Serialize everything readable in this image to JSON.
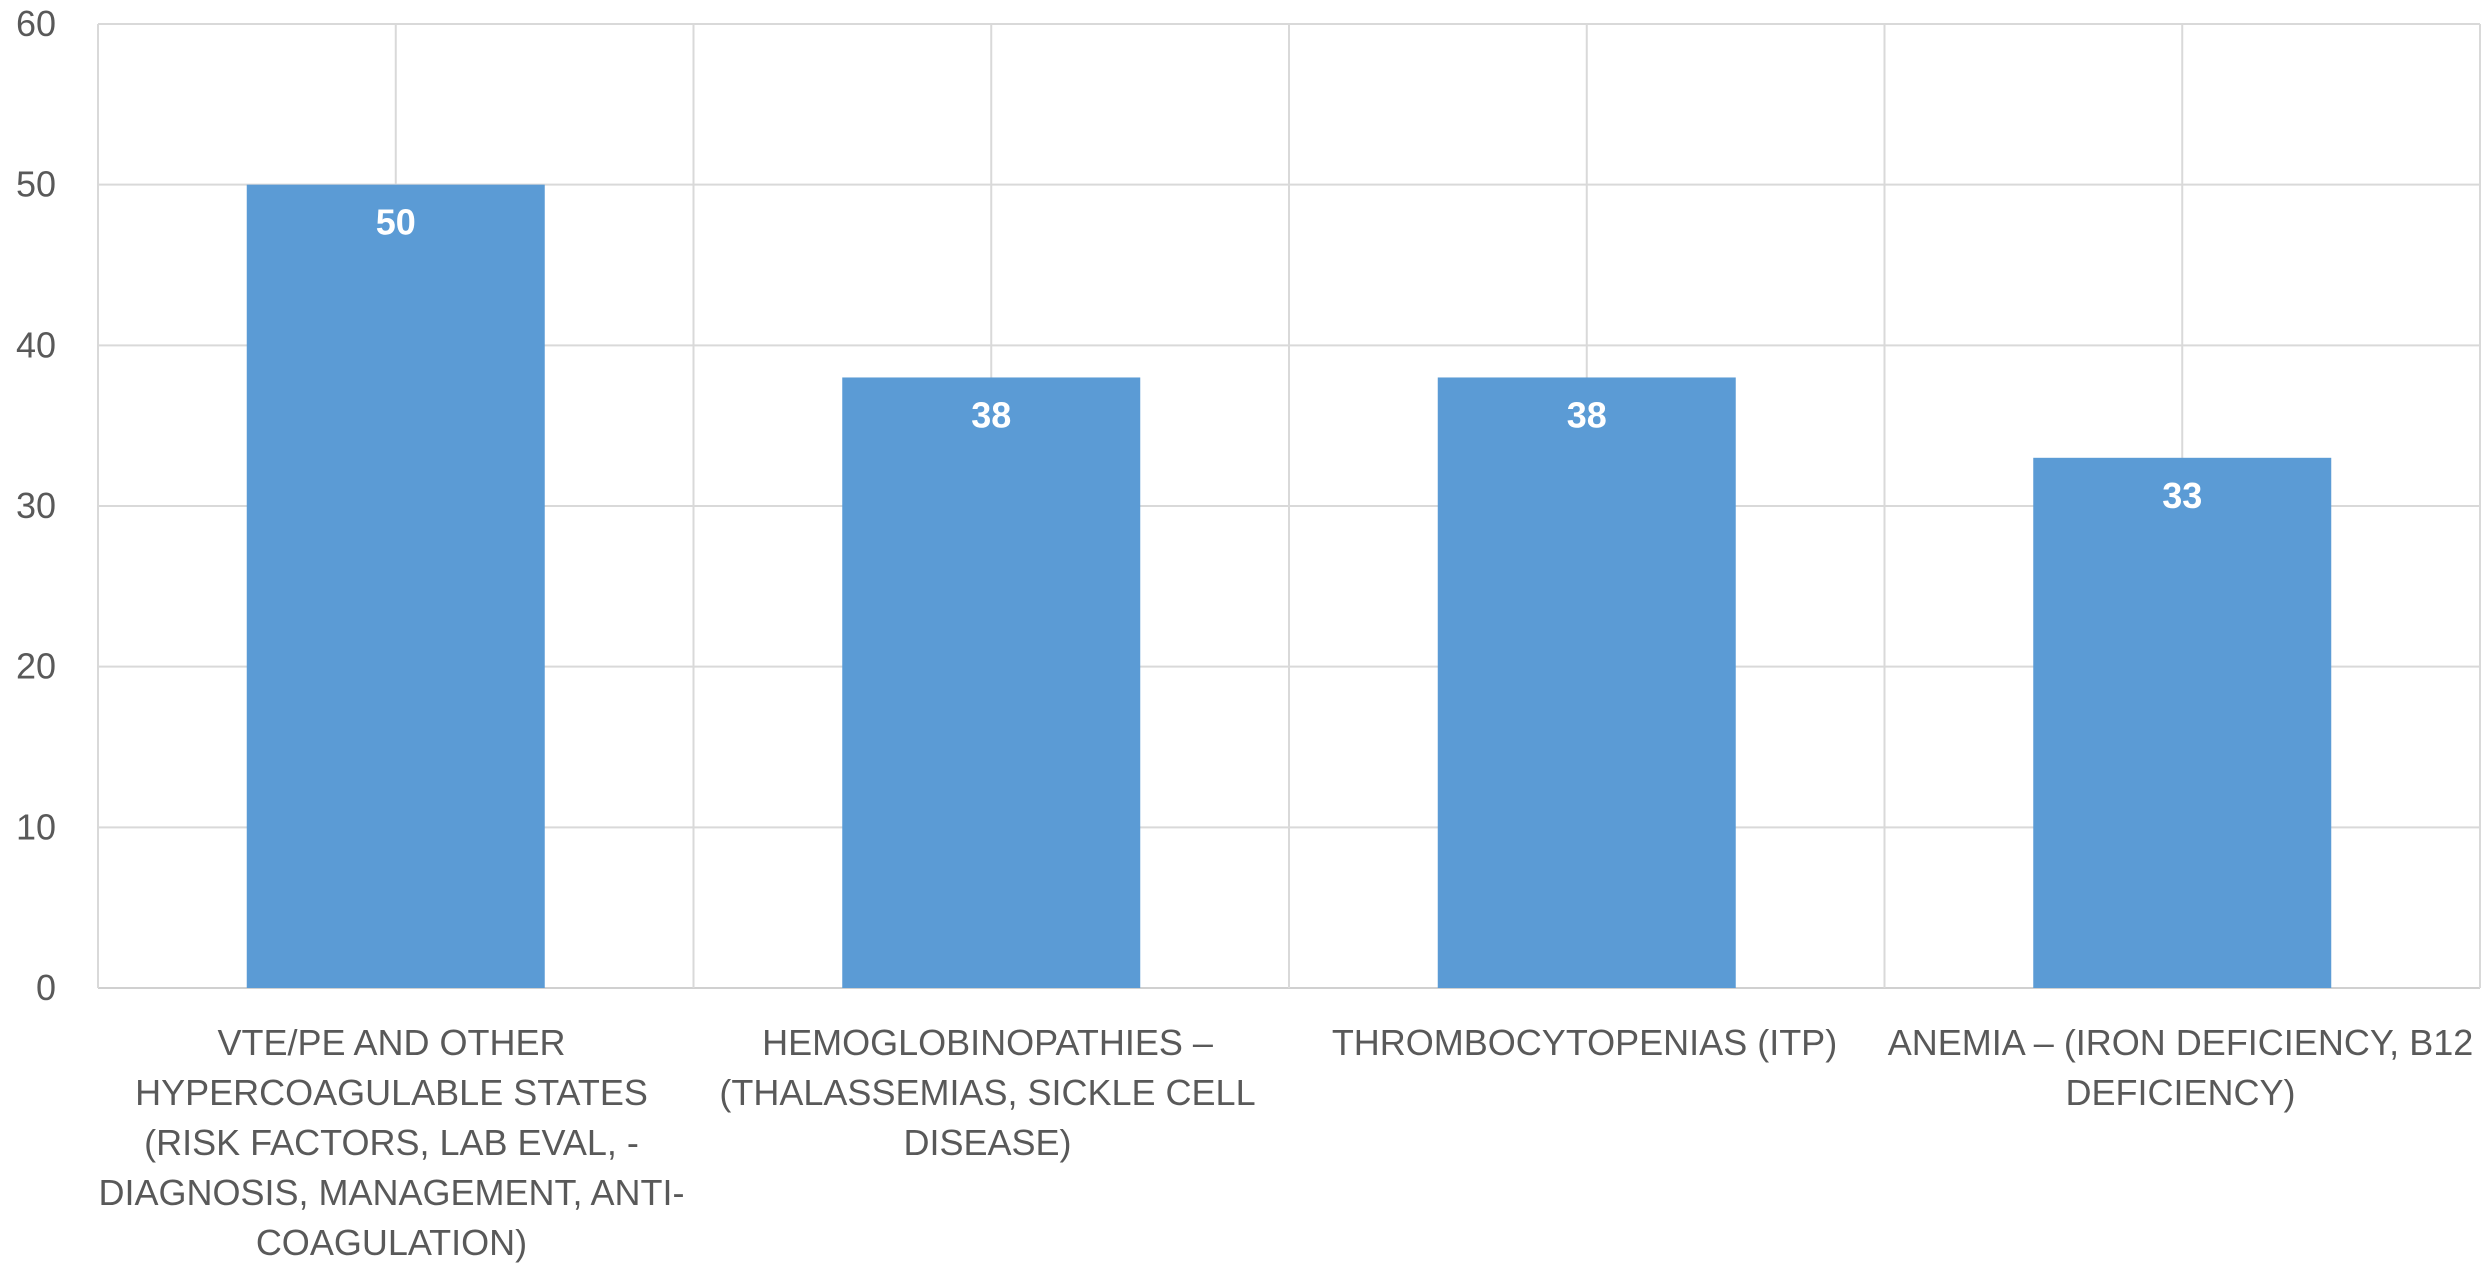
{
  "chart_data": {
    "type": "bar",
    "title": "",
    "xlabel": "",
    "ylabel": "",
    "ylim": [
      0,
      60
    ],
    "yticks": [
      "0",
      "10",
      "20",
      "30",
      "40",
      "50",
      "60"
    ],
    "grid": true,
    "categories": [
      "VTE/PE AND OTHER HYPERCOAGULABLE STATES (RISK FACTORS, LAB EVAL, - DIAGNOSIS, MANAGEMENT, ANTI-COAGULATION)",
      "HEMOGLOBINOPATHIES – (THALASSEMIAS, SICKLE CELL DISEASE)",
      "THROMBOCYTOPENIAS (ITP)",
      "ANEMIA – (IRON DEFICIENCY, B12 DEFICIENCY)"
    ],
    "values": [
      50,
      38,
      38,
      33
    ],
    "data_labels": [
      "50",
      "38",
      "38",
      "33"
    ],
    "bar_color": "#5B9BD5",
    "grid_color": "#D9D9D9",
    "axis_text_color": "#595959"
  }
}
